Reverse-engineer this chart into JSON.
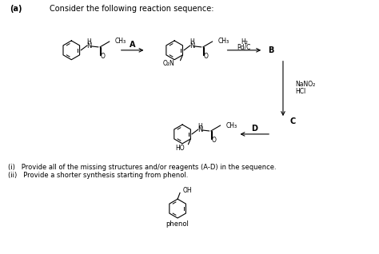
{
  "bg_color": "#ffffff",
  "text_color": "#000000",
  "title_label": "(a)",
  "header_text": "Consider the following reaction sequence:",
  "label_A": "A",
  "label_B": "B",
  "label_C": "C",
  "label_D": "D",
  "question_i": "(i)   Provide all of the missing structures and/or reagents (A-D) in the sequence.",
  "question_ii": "(ii)   Provide a shorter synthesis starting from phenol.",
  "phenol_label": "phenol",
  "figsize": [
    4.74,
    3.18
  ],
  "dpi": 100
}
